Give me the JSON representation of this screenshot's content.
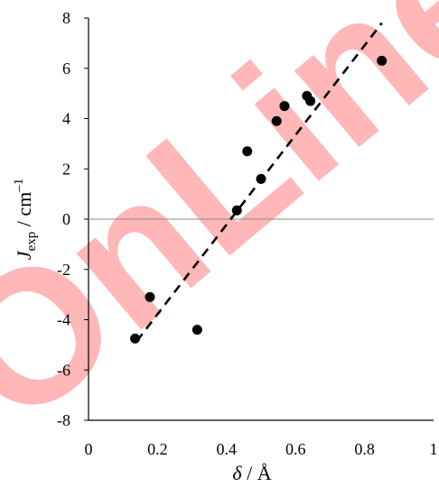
{
  "watermark": {
    "text": "OnLine",
    "color": "#ff0000"
  },
  "chart_data": {
    "type": "scatter",
    "title": "",
    "xlabel": {
      "symbol": "δ",
      "unit": " / Å"
    },
    "ylabel": {
      "symbol": "J",
      "subscript": "exp",
      "unit": " / cm",
      "superscript": "–1"
    },
    "xlim": [
      0,
      1
    ],
    "ylim": [
      -8,
      8
    ],
    "xticks": [
      0,
      0.2,
      0.4,
      0.6,
      0.8,
      1
    ],
    "xtick_labels": [
      "0",
      "0.2",
      "0.4",
      "0.6",
      "0.8",
      "1"
    ],
    "yticks": [
      -8,
      -6,
      -4,
      -2,
      0,
      2,
      4,
      6,
      8
    ],
    "ytick_labels": [
      "-8",
      "-6",
      "-4",
      "-2",
      "0",
      "2",
      "4",
      "6",
      "8"
    ],
    "grid": false,
    "zero_line": true,
    "series": [
      {
        "marker": "circle",
        "color": "#000000",
        "x": [
          0.135,
          0.178,
          0.315,
          0.43,
          0.46,
          0.5,
          0.545,
          0.568,
          0.633,
          0.643,
          0.85
        ],
        "y": [
          -4.75,
          -3.1,
          -4.4,
          0.35,
          2.7,
          1.6,
          3.9,
          4.5,
          4.9,
          4.7,
          6.3
        ]
      }
    ],
    "trendline": {
      "style": "dashed",
      "color": "#000000",
      "x": [
        0.14,
        0.85
      ],
      "y": [
        -4.85,
        7.8
      ]
    }
  }
}
